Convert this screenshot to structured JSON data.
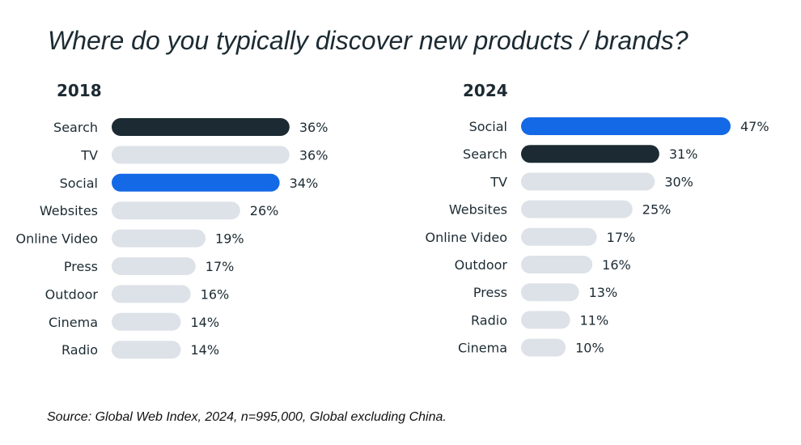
{
  "title": "Where do you typically discover new products / brands?",
  "source": "Source: Global Web Index, 2024, n=995,000, Global excluding China.",
  "colors": {
    "social": "#1469e6",
    "search": "#1c2b33",
    "other": "#dde2e8",
    "text": "#1c2b33"
  },
  "chart_data": [
    {
      "type": "bar",
      "orientation": "horizontal",
      "title": "2018",
      "categories": [
        "Search",
        "TV",
        "Social",
        "Websites",
        "Online Video",
        "Press",
        "Outdoor",
        "Cinema",
        "Radio"
      ],
      "values": [
        36,
        36,
        34,
        26,
        19,
        17,
        16,
        14,
        14
      ],
      "value_labels": [
        "36%",
        "36%",
        "34%",
        "26%",
        "19%",
        "17%",
        "16%",
        "14%",
        "14%"
      ],
      "bar_colors": [
        "search",
        "other",
        "social",
        "other",
        "other",
        "other",
        "other",
        "other",
        "other"
      ],
      "xlim": [
        0,
        47
      ]
    },
    {
      "type": "bar",
      "orientation": "horizontal",
      "title": "2024",
      "categories": [
        "Social",
        "Search",
        "TV",
        "Websites",
        "Online Video",
        "Outdoor",
        "Press",
        "Radio",
        "Cinema"
      ],
      "values": [
        47,
        31,
        30,
        25,
        17,
        16,
        13,
        11,
        10
      ],
      "value_labels": [
        "47%",
        "31%",
        "30%",
        "25%",
        "17%",
        "16%",
        "13%",
        "11%",
        "10%"
      ],
      "bar_colors": [
        "social",
        "search",
        "other",
        "other",
        "other",
        "other",
        "other",
        "other",
        "other"
      ],
      "xlim": [
        0,
        47
      ]
    }
  ]
}
